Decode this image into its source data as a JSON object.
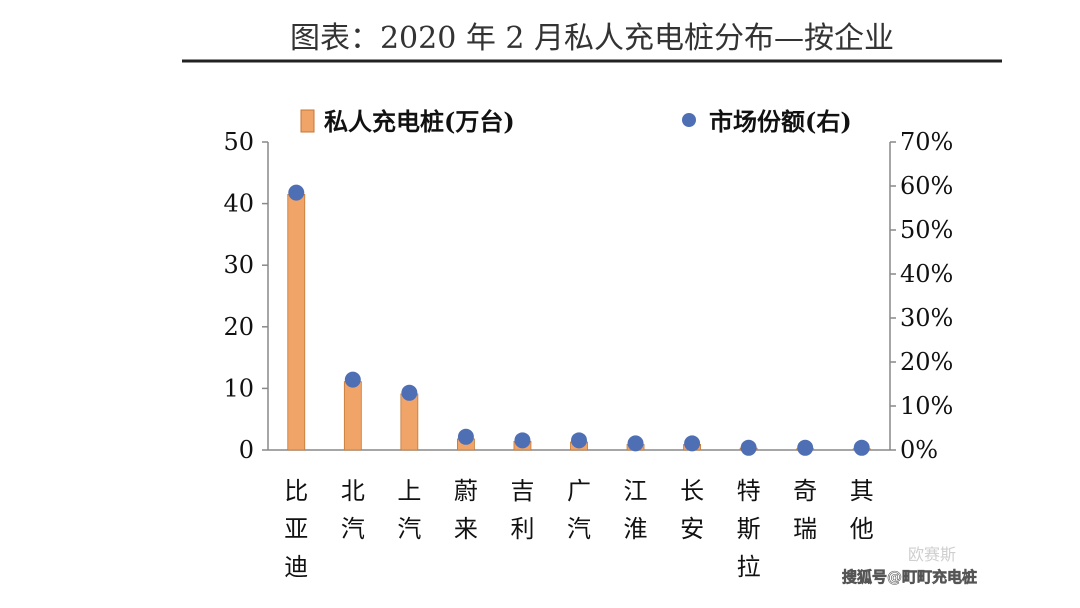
{
  "title": "图表：2020 年 2 月私人充电桩分布—按企业",
  "watermark": {
    "source_tag": "欧赛斯",
    "channel": "搜狐号@町町充电桩"
  },
  "colors": {
    "bar_fill": "#f0a468",
    "bar_stroke": "#c47834",
    "dot": "#4f6fb5",
    "axis": "#888888",
    "title_rule": "#222222"
  },
  "chart_data": {
    "type": "bar",
    "title": "图表：2020 年 2 月私人充电桩分布—按企业",
    "categories": [
      "比亚迪",
      "北汽",
      "上汽",
      "蔚来",
      "吉利",
      "广汽",
      "江淮",
      "长安",
      "特斯拉",
      "奇瑞",
      "其他"
    ],
    "series": [
      {
        "name": "私人充电桩(万台)",
        "type": "bar",
        "axis": "left",
        "values": [
          41.5,
          11.1,
          9.1,
          1.8,
          1.4,
          1.3,
          0.9,
          0.9,
          0.3,
          0.2,
          0.2
        ]
      },
      {
        "name": "市场份额(右)",
        "type": "scatter",
        "axis": "right",
        "values": [
          0.585,
          0.16,
          0.13,
          0.03,
          0.022,
          0.022,
          0.015,
          0.015,
          0.005,
          0.005,
          0.005
        ]
      }
    ],
    "left_axis": {
      "ylim": [
        0,
        50
      ],
      "ticks": [
        "0",
        "10",
        "20",
        "30",
        "40",
        "50"
      ]
    },
    "right_axis": {
      "ylim": [
        0,
        0.7
      ],
      "ticks": [
        "0%",
        "10%",
        "20%",
        "30%",
        "40%",
        "50%",
        "60%",
        "70%"
      ]
    },
    "legend_position": "top",
    "grid": false
  }
}
